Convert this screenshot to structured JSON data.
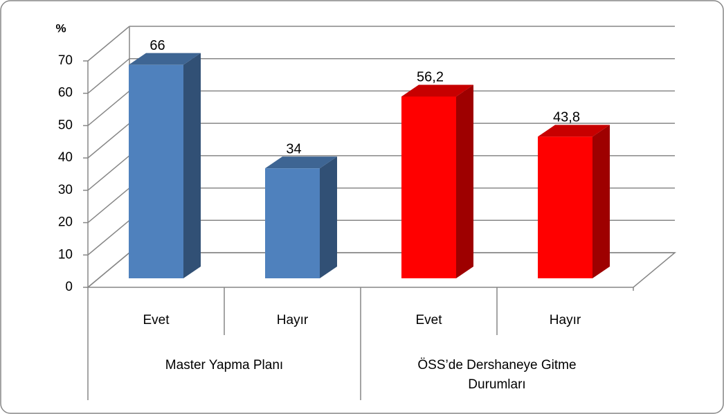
{
  "chart_data": {
    "type": "bar",
    "y_label": "%",
    "categories": [
      "Evet",
      "Hayır",
      "Evet",
      "Hayır"
    ],
    "groups": [
      "Master Yapma Planı",
      "ÖSS’de Dershaneye Gitme Durumları"
    ],
    "values": [
      66,
      34,
      56.2,
      43.8
    ],
    "value_labels": [
      "66",
      "34",
      "56,2",
      "43,8"
    ],
    "colors": [
      "#4f81bd",
      "#4f81bd",
      "#ff0000",
      "#ff0000"
    ],
    "ylim": [
      0,
      70
    ],
    "yticks": [
      0,
      10,
      20,
      30,
      40,
      50,
      60,
      70
    ],
    "grid": true
  }
}
